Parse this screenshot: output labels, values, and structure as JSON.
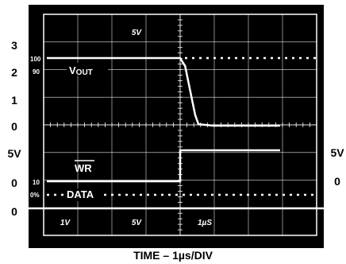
{
  "chart_data": {
    "type": "line",
    "title": "",
    "xlabel": "TIME – 1µs/DIV",
    "left_scale_labels": [
      "3",
      "2",
      "1",
      "0",
      "5V",
      "0",
      "0"
    ],
    "right_scale_labels": [
      "5V",
      "0"
    ],
    "screen_top_label": "5V",
    "percent_labels": [
      "100",
      "90",
      "10",
      "0%"
    ],
    "bottom_labels": [
      "1V",
      "5V",
      "1µS"
    ],
    "series": [
      {
        "name": "VOUT",
        "units": "V",
        "x_us": [
          0,
          4.0,
          4.15,
          4.45,
          4.55,
          5.0,
          7.0
        ],
        "values": [
          2.5,
          2.5,
          2.2,
          0.4,
          0.05,
          0,
          0
        ]
      },
      {
        "name": "WR",
        "overline": true,
        "units": "V",
        "x_us": [
          0,
          4.0,
          4.0,
          7.0
        ],
        "values": [
          0,
          0,
          5,
          5
        ]
      },
      {
        "name": "DATA",
        "units": "V",
        "x_us": [
          0,
          7.0
        ],
        "values": [
          0,
          0
        ],
        "style": "dotted"
      }
    ]
  }
}
